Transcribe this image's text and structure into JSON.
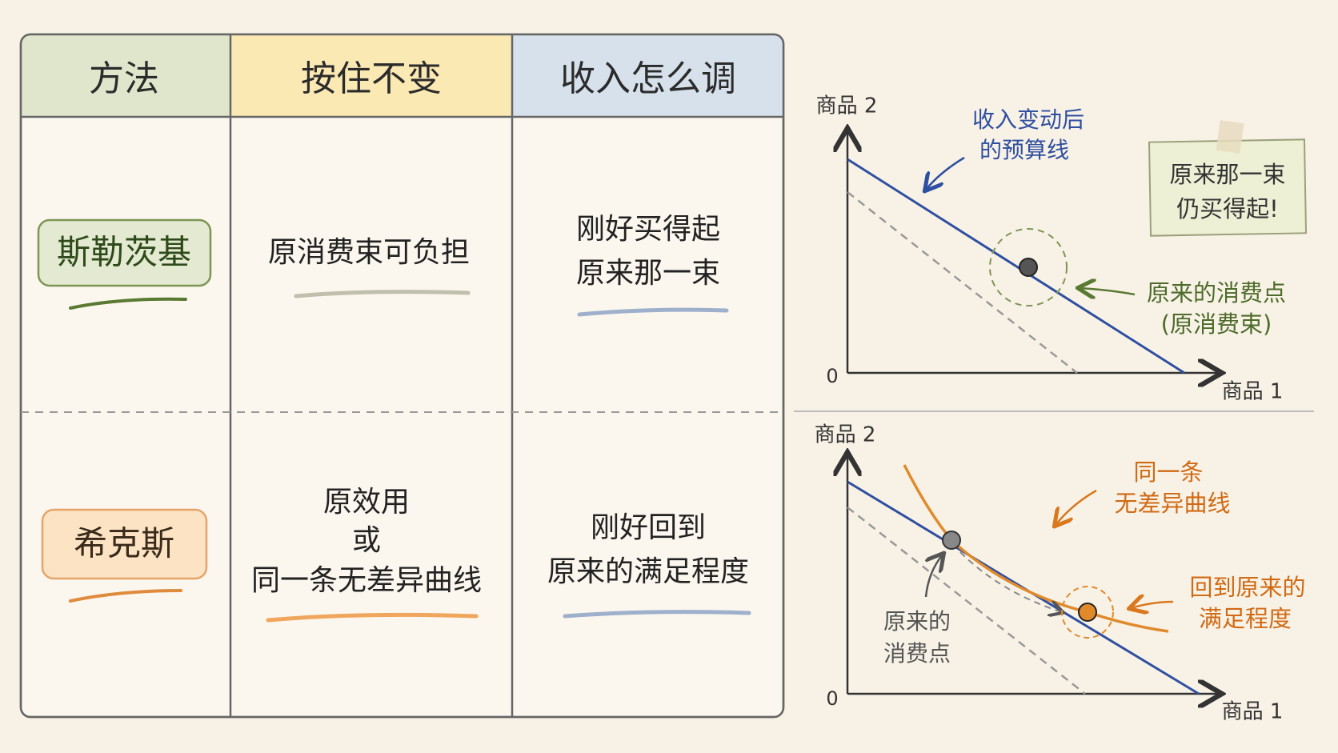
{
  "table": {
    "headers": [
      "方法",
      "按住不变",
      "收入怎么调"
    ],
    "rows": [
      {
        "method": "斯勒茨基",
        "hold": [
          "原消费束可负担"
        ],
        "income": [
          "刚好买得起",
          "原来那一束"
        ]
      },
      {
        "method": "希克斯",
        "hold": [
          "原效用",
          "或",
          "同一条无差异曲线"
        ],
        "income": [
          "刚好回到",
          "原来的满足程度"
        ]
      }
    ]
  },
  "diagrams": [
    {
      "y_axis": "商品 2",
      "x_axis": "商品 1",
      "origin": "0",
      "budget_label": [
        "收入变动后",
        "的预算线"
      ],
      "point_label": [
        "原来的消费点",
        "(原消费束)"
      ],
      "note": [
        "原来那一束",
        "仍买得起!"
      ]
    },
    {
      "y_axis": "商品 2",
      "x_axis": "商品 1",
      "origin": "0",
      "curve_label": [
        "同一条",
        "无差异曲线"
      ],
      "new_point_label": [
        "回到原来的",
        "满足程度"
      ],
      "old_point_label": [
        "原来的",
        "消费点"
      ]
    }
  ]
}
